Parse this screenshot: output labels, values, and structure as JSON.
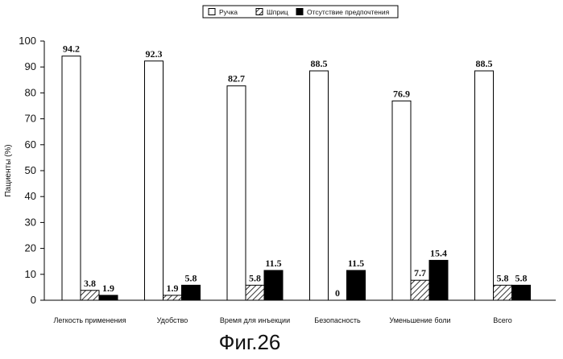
{
  "chart_data": {
    "type": "bar",
    "categories": [
      "Легкость применения",
      "Удобство",
      "Время для инъекции",
      "Безопасность",
      "Уменьшение боли",
      "Всего"
    ],
    "series": [
      {
        "name": "Ручка",
        "values": [
          94.2,
          92.3,
          82.7,
          88.5,
          76.9,
          88.5
        ],
        "value_labels": [
          "94.2",
          "92.3",
          "82.7",
          "88.5",
          "76.9",
          "88.5"
        ],
        "fill": "white"
      },
      {
        "name": "Шприц",
        "values": [
          3.8,
          1.9,
          5.8,
          0,
          7.7,
          5.8
        ],
        "value_labels": [
          "3.8",
          "1.9",
          "5.8",
          "0",
          "7.7",
          "5.8"
        ],
        "fill": "hatch"
      },
      {
        "name": "Отсутствие предпочтения",
        "values": [
          1.9,
          5.8,
          11.5,
          11.5,
          15.4,
          5.8
        ],
        "value_labels": [
          "1.9",
          "5.8",
          "11.5",
          "11.5",
          "15.4",
          "5.8"
        ],
        "fill": "black"
      }
    ],
    "ylabel": "Пациенты (%)",
    "ylim": [
      0,
      100
    ],
    "yticks": [
      0,
      10,
      20,
      30,
      40,
      50,
      60,
      70,
      80,
      90,
      100
    ],
    "legend_position": "top-right",
    "grid": false
  },
  "caption": "Фиг.26"
}
